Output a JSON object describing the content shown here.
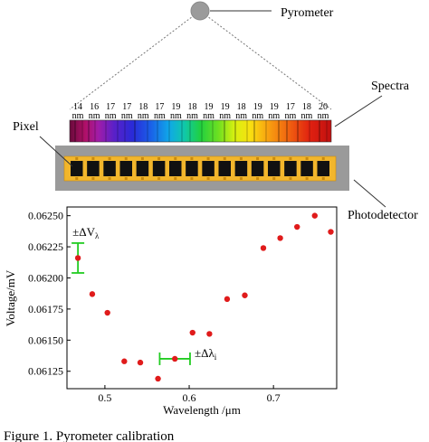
{
  "labels": {
    "pyrometer": "Pyrometer",
    "spectra": "Spectra",
    "pixel": "Pixel",
    "photodetector": "Photodetector",
    "caption": "Figure 1. Pyrometer calibration"
  },
  "spectrum": {
    "pixel_labels": [
      {
        "num": "14",
        "unit": "nm"
      },
      {
        "num": "16",
        "unit": "nm"
      },
      {
        "num": "17",
        "unit": "nm"
      },
      {
        "num": "17",
        "unit": "nm"
      },
      {
        "num": "18",
        "unit": "nm"
      },
      {
        "num": "17",
        "unit": "nm"
      },
      {
        "num": "19",
        "unit": "nm"
      },
      {
        "num": "18",
        "unit": "nm"
      },
      {
        "num": "19",
        "unit": "nm"
      },
      {
        "num": "19",
        "unit": "nm"
      },
      {
        "num": "18",
        "unit": "nm"
      },
      {
        "num": "19",
        "unit": "nm"
      },
      {
        "num": "19",
        "unit": "nm"
      },
      {
        "num": "17",
        "unit": "nm"
      },
      {
        "num": "18",
        "unit": "nm"
      },
      {
        "num": "20",
        "unit": "nm"
      }
    ],
    "pixel_count": 16
  },
  "colors": {
    "point": "#e01b1b",
    "errorbar": "#22cc22",
    "detector_frame": "#f2b62c",
    "detector_bg": "#9a9a9a",
    "pixel": "#111111"
  },
  "chart_data": {
    "type": "scatter",
    "title": "",
    "xlabel": "Wavelength /μm",
    "ylabel": "Voltage/mV",
    "xlim": [
      0.455,
      0.775
    ],
    "ylim": [
      0.06111,
      0.06257
    ],
    "xticks": [
      "0.5",
      "0.6",
      "0.7"
    ],
    "xtick_values": [
      0.5,
      0.6,
      0.7
    ],
    "yticks": [
      "0.06125",
      "0.06150",
      "0.06175",
      "0.06200",
      "0.06225",
      "0.06250"
    ],
    "ytick_values": [
      0.06125,
      0.0615,
      0.06175,
      0.062,
      0.06225,
      0.0625
    ],
    "points": [
      {
        "x": 0.468,
        "y": 0.06216
      },
      {
        "x": 0.485,
        "y": 0.06187
      },
      {
        "x": 0.503,
        "y": 0.06172
      },
      {
        "x": 0.523,
        "y": 0.06133
      },
      {
        "x": 0.542,
        "y": 0.06132
      },
      {
        "x": 0.563,
        "y": 0.06119
      },
      {
        "x": 0.583,
        "y": 0.06135
      },
      {
        "x": 0.604,
        "y": 0.06156
      },
      {
        "x": 0.624,
        "y": 0.06155
      },
      {
        "x": 0.645,
        "y": 0.06183
      },
      {
        "x": 0.666,
        "y": 0.06186
      },
      {
        "x": 0.688,
        "y": 0.06224
      },
      {
        "x": 0.708,
        "y": 0.06232
      },
      {
        "x": 0.728,
        "y": 0.06241
      },
      {
        "x": 0.749,
        "y": 0.0625
      },
      {
        "x": 0.768,
        "y": 0.06237
      }
    ],
    "annotations": [
      {
        "text": "±ΔV",
        "subscript": "λ",
        "type": "vertical-error",
        "x": 0.468,
        "y": 0.06216,
        "delta": 0.00012
      },
      {
        "text": "±Δλ",
        "subscript": "i",
        "type": "horizontal-error",
        "x": 0.583,
        "y": 0.06135,
        "delta": 0.018
      }
    ]
  }
}
